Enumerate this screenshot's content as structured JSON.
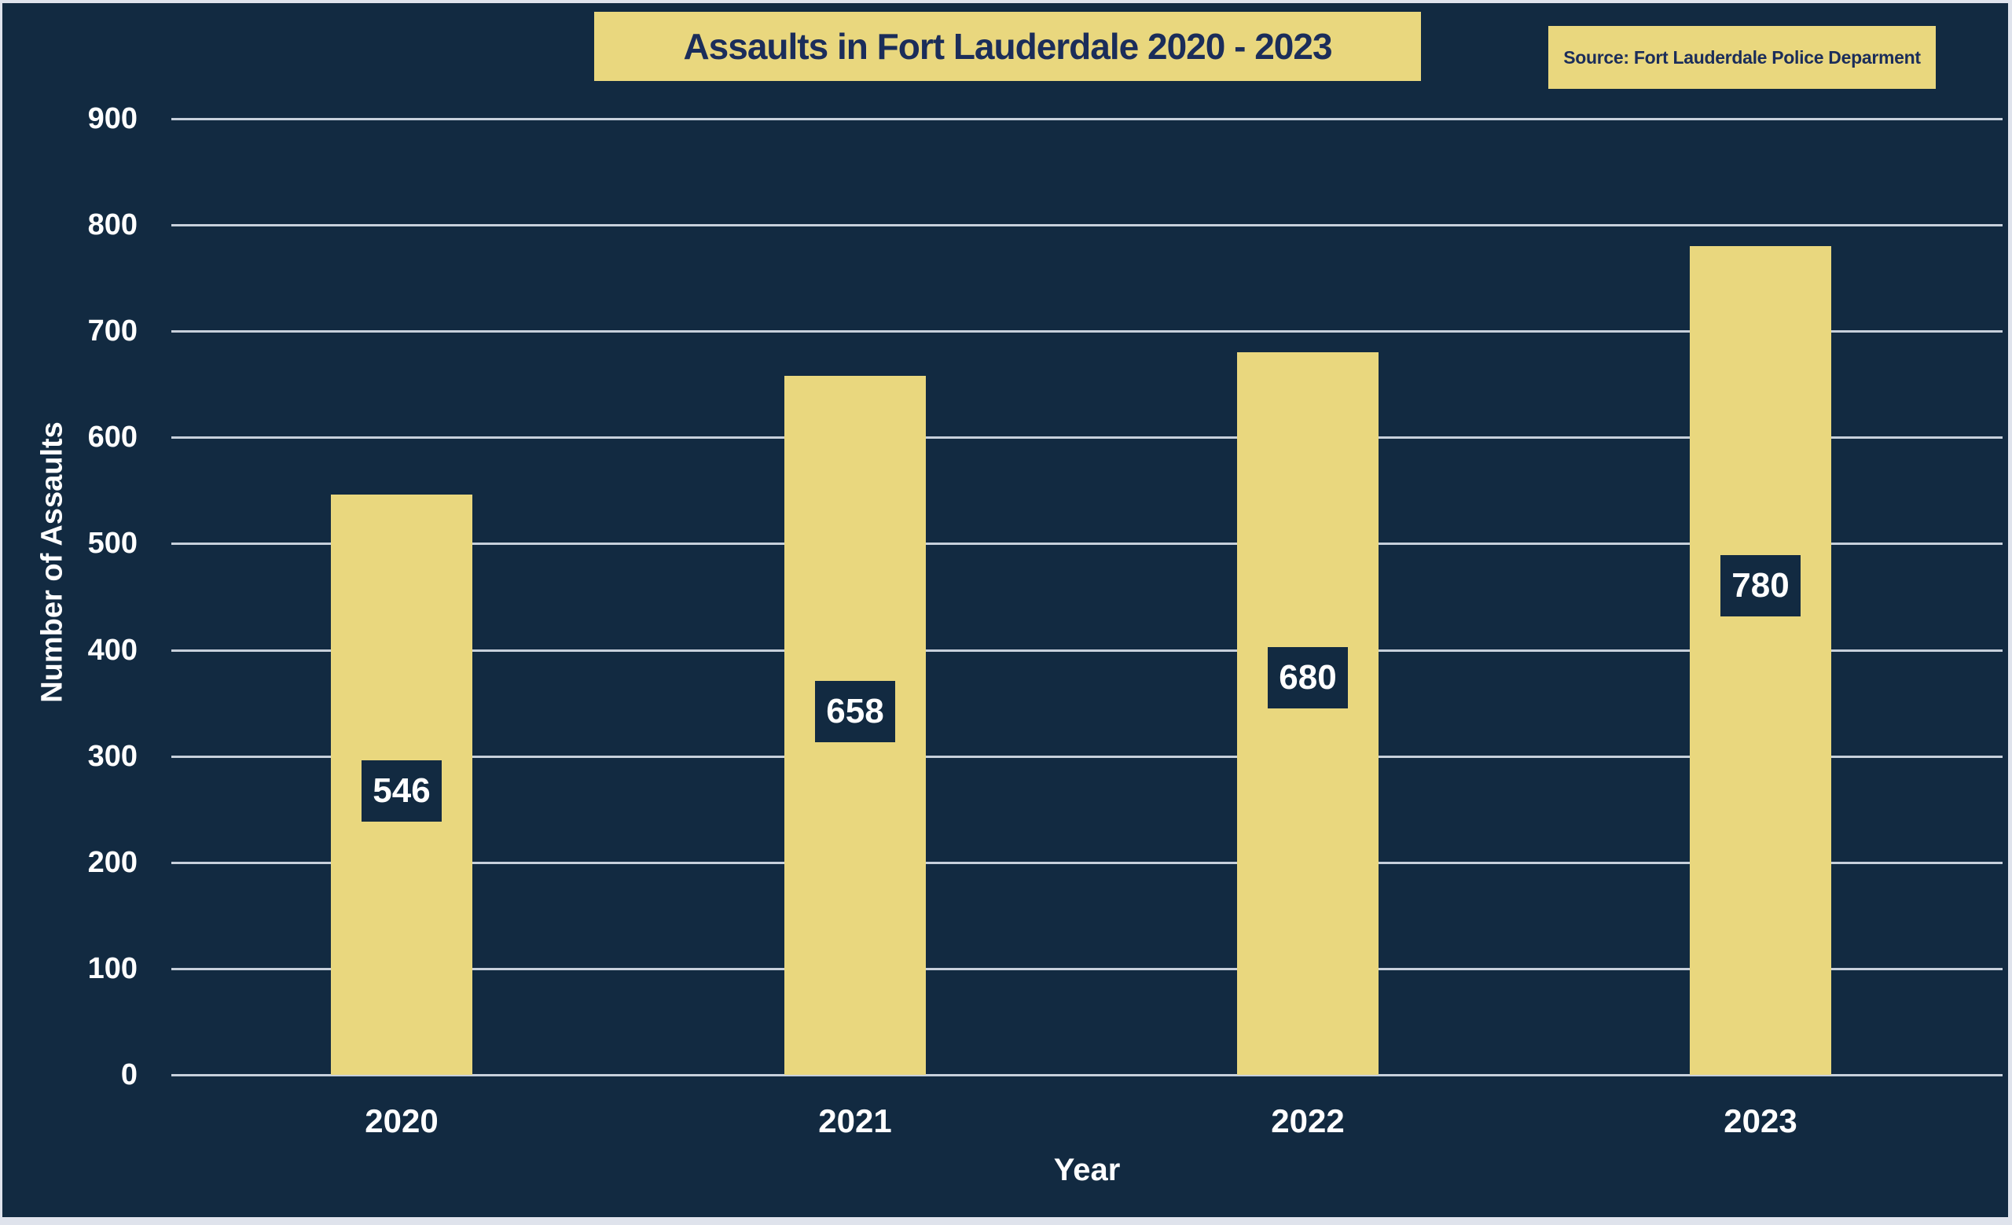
{
  "header": {
    "title": "Assaults in Fort Lauderdale 2020 - 2023",
    "source_note": "Source: Fort Lauderdale Police Deparment"
  },
  "colors": {
    "background_navy": "#122a41",
    "bar_yellow": "#e9d77e",
    "gridline_gray": "#c7d0db",
    "title_text_navy": "#1b2d5a",
    "axis_text_white": "#ffffff",
    "value_box_navy": "#122a41",
    "frame_light": "#dfe3ec"
  },
  "chart_data": {
    "type": "bar",
    "title": "Assaults in Fort Lauderdale 2020 - 2023",
    "source": "Source: Fort Lauderdale Police Deparment",
    "categories": [
      "2020",
      "2021",
      "2022",
      "2023"
    ],
    "values": [
      546,
      658,
      680,
      780
    ],
    "data_labels": [
      "546",
      "658",
      "680",
      "780"
    ],
    "xlabel": "Year",
    "ylabel": "Number of Assaults",
    "ylim": [
      0,
      900
    ],
    "yticks": [
      0,
      100,
      200,
      300,
      400,
      500,
      600,
      700,
      800,
      900
    ],
    "grid": "horizontal",
    "legend_position": "none",
    "bar_color": "#e9d77e",
    "background_color": "#122a41",
    "data_label_style": "white text in navy box inside bar"
  }
}
